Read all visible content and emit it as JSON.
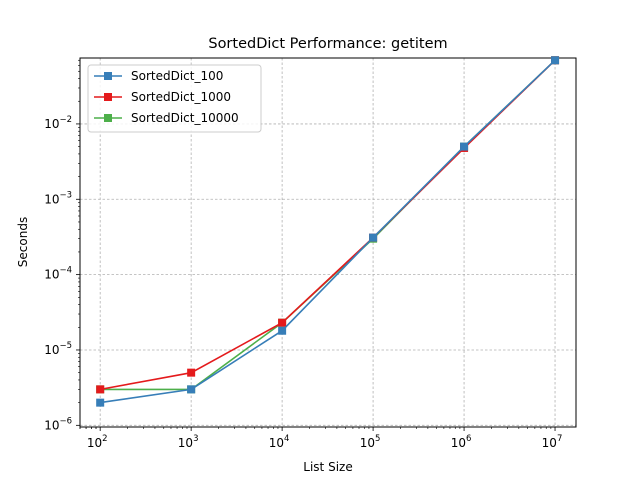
{
  "chart_data": {
    "type": "line",
    "title": "SortedDict Performance: getitem",
    "xlabel": "List Size",
    "ylabel": "Seconds",
    "xscale": "log",
    "yscale": "log",
    "x": [
      100,
      1000,
      10000,
      100000,
      1000000,
      10000000
    ],
    "x_tick_labels": [
      {
        "base": "10",
        "exp": "2"
      },
      {
        "base": "10",
        "exp": "3"
      },
      {
        "base": "10",
        "exp": "4"
      },
      {
        "base": "10",
        "exp": "5"
      },
      {
        "base": "10",
        "exp": "6"
      },
      {
        "base": "10",
        "exp": "7"
      }
    ],
    "y_tick_labels": [
      {
        "base": "10",
        "exp": "−6"
      },
      {
        "base": "10",
        "exp": "−5"
      },
      {
        "base": "10",
        "exp": "−4"
      },
      {
        "base": "10",
        "exp": "−3"
      },
      {
        "base": "10",
        "exp": "−2"
      }
    ],
    "y_ticks": [
      1e-06,
      1e-05,
      0.0001,
      0.001,
      0.01
    ],
    "xlim": [
      60,
      17000000
    ],
    "ylim": [
      9.5e-07,
      0.075
    ],
    "grid": true,
    "legend_position": "upper-left",
    "series": [
      {
        "name": "SortedDict_10000",
        "color": "#4daf4a",
        "marker": "square",
        "values": [
          3e-06,
          3e-06,
          2.3e-05,
          0.0003,
          0.005,
          0.07
        ]
      },
      {
        "name": "SortedDict_1000",
        "color": "#e41a1c",
        "marker": "square",
        "values": [
          3e-06,
          5e-06,
          2.3e-05,
          0.00031,
          0.0048,
          0.07
        ]
      },
      {
        "name": "SortedDict_100",
        "color": "#377eb8",
        "marker": "square",
        "values": [
          2e-06,
          3e-06,
          1.8e-05,
          0.00031,
          0.005,
          0.07
        ]
      }
    ],
    "legend_order": [
      "SortedDict_100",
      "SortedDict_1000",
      "SortedDict_10000"
    ]
  }
}
